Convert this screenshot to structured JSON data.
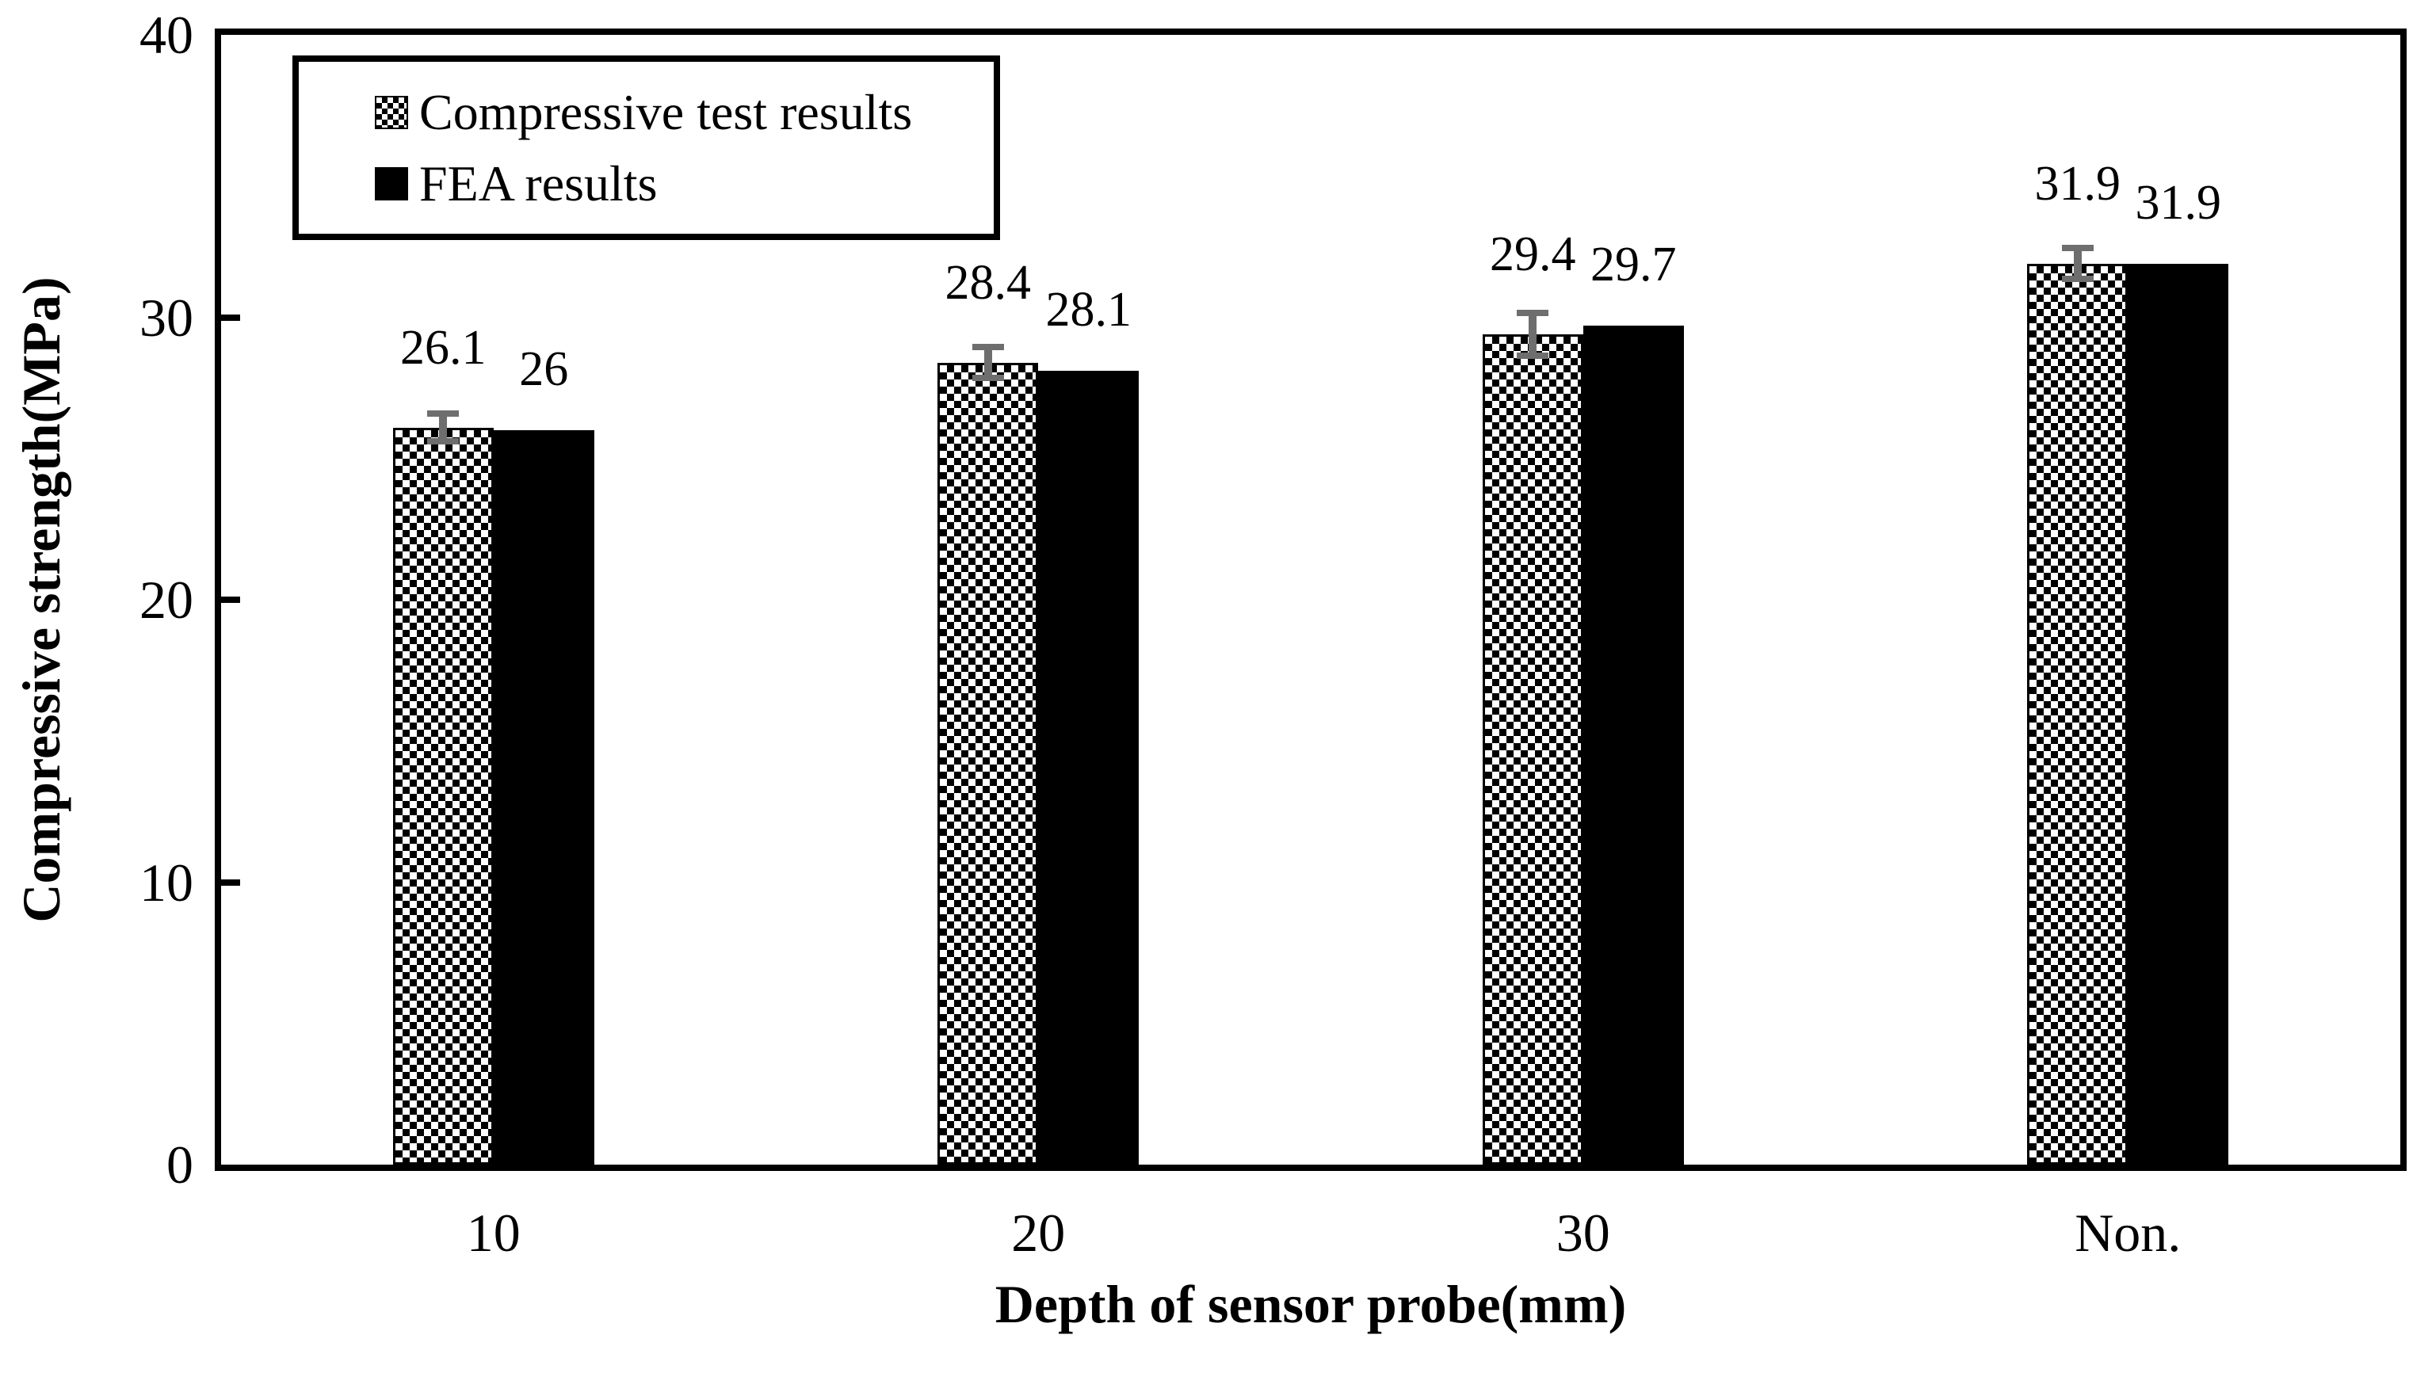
{
  "chart_data": {
    "type": "bar",
    "title": "",
    "categories": [
      "10",
      "20",
      "30",
      "Non."
    ],
    "series": [
      {
        "name": "Compressive test results",
        "values": [
          26.1,
          28.4,
          29.4,
          31.9
        ],
        "value_labels": [
          "26.1",
          "28.4",
          "29.4",
          "31.9"
        ],
        "errors": [
          0.5,
          0.55,
          0.75,
          0.55
        ],
        "style": "checkerboard-pattern"
      },
      {
        "name": "FEA results",
        "values": [
          26,
          28.1,
          29.7,
          31.9
        ],
        "value_labels": [
          "26",
          "28.1",
          "29.7",
          "31.9"
        ],
        "errors": null,
        "style": "solid-black"
      }
    ],
    "xlabel": "Depth of sensor probe(mm)",
    "ylabel": "Compressive strength(MPa)",
    "ylim": [
      0,
      40
    ],
    "yticks": [
      0,
      10,
      20,
      30,
      40
    ],
    "grid": false,
    "legend_position": "top-left",
    "bar_color": "#000000",
    "error_bar_color": "#6e6e6e"
  }
}
